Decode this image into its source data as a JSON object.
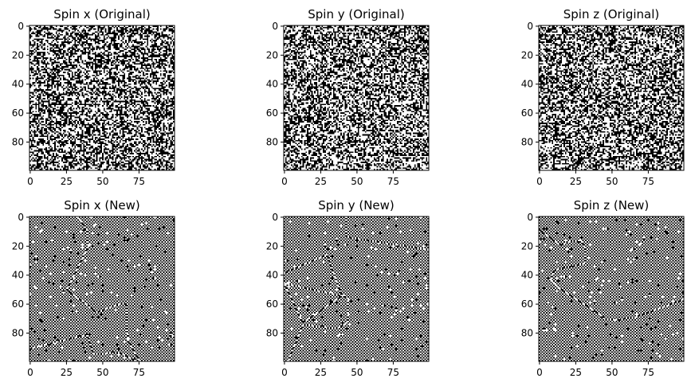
{
  "chart_data": [
    {
      "type": "heatmap",
      "title": "Spin x (Original)",
      "pattern": "random",
      "seed": 11,
      "grid_size": 100,
      "colormap": [
        "#000000",
        "#ffffff"
      ],
      "xticks": [
        0,
        25,
        50,
        75
      ],
      "yticks": [
        0,
        20,
        40,
        60,
        80
      ],
      "xlim": [
        0,
        99
      ],
      "ylim": [
        99,
        0
      ]
    },
    {
      "type": "heatmap",
      "title": "Spin y (Original)",
      "pattern": "random",
      "seed": 23,
      "grid_size": 100,
      "colormap": [
        "#000000",
        "#ffffff"
      ],
      "xticks": [
        0,
        25,
        50,
        75
      ],
      "yticks": [
        0,
        20,
        40,
        60,
        80
      ],
      "xlim": [
        0,
        99
      ],
      "ylim": [
        99,
        0
      ]
    },
    {
      "type": "heatmap",
      "title": "Spin z (Original)",
      "pattern": "random",
      "seed": 37,
      "grid_size": 100,
      "colormap": [
        "#000000",
        "#ffffff"
      ],
      "xticks": [
        0,
        25,
        50,
        75
      ],
      "yticks": [
        0,
        20,
        40,
        60,
        80
      ],
      "xlim": [
        0,
        99
      ],
      "ylim": [
        99,
        0
      ]
    },
    {
      "type": "heatmap",
      "title": "Spin x (New)",
      "pattern": "checkerboard",
      "seed": 41,
      "grid_size": 100,
      "colormap": [
        "#000000",
        "#ffffff"
      ],
      "xticks": [
        0,
        25,
        50,
        75
      ],
      "yticks": [
        0,
        20,
        40,
        60,
        80
      ],
      "xlim": [
        0,
        99
      ],
      "ylim": [
        99,
        0
      ]
    },
    {
      "type": "heatmap",
      "title": "Spin y (New)",
      "pattern": "checkerboard",
      "seed": 53,
      "grid_size": 100,
      "colormap": [
        "#000000",
        "#ffffff"
      ],
      "xticks": [
        0,
        25,
        50,
        75
      ],
      "yticks": [
        0,
        20,
        40,
        60,
        80
      ],
      "xlim": [
        0,
        99
      ],
      "ylim": [
        99,
        0
      ]
    },
    {
      "type": "heatmap",
      "title": "Spin z (New)",
      "pattern": "checkerboard",
      "seed": 67,
      "grid_size": 100,
      "colormap": [
        "#000000",
        "#ffffff"
      ],
      "xticks": [
        0,
        25,
        50,
        75
      ],
      "yticks": [
        0,
        20,
        40,
        60,
        80
      ],
      "xlim": [
        0,
        99
      ],
      "ylim": [
        99,
        0
      ]
    }
  ]
}
